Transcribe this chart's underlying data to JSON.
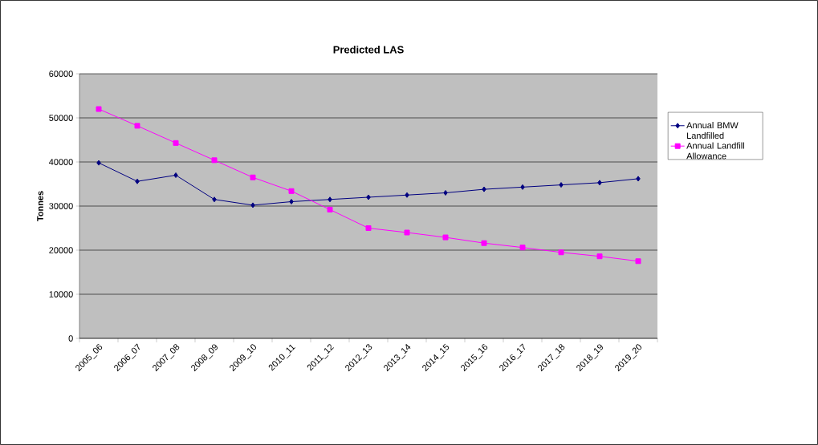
{
  "chart_data": {
    "type": "line",
    "title": "Predicted LAS",
    "ylabel": "Tonnes",
    "categories": [
      "2005_06",
      "2006_07",
      "2007_08",
      "2008_09",
      "2009_10",
      "2010_11",
      "2011_12",
      "2012_13",
      "2013_14",
      "2014_15",
      "2015_16",
      "2016_17",
      "2017_18",
      "2018_19",
      "2019_20"
    ],
    "series": [
      {
        "name": "Annual BMW Landfilled",
        "color": "#000080",
        "marker": "diamond",
        "values": [
          39800,
          35600,
          37000,
          31500,
          30200,
          31000,
          31500,
          32000,
          32500,
          33000,
          33800,
          34300,
          34800,
          35300,
          36200
        ]
      },
      {
        "name": "Annual Landfill Allowance",
        "color": "#ff00ff",
        "marker": "square",
        "values": [
          52000,
          48200,
          44300,
          40400,
          36500,
          33400,
          29200,
          25000,
          24000,
          22900,
          21600,
          20600,
          19500,
          18600,
          17500
        ]
      }
    ],
    "ylim": [
      0,
      60000
    ],
    "yticks": [
      0,
      10000,
      20000,
      30000,
      40000,
      50000,
      60000
    ],
    "grid": "y",
    "legend": "right"
  }
}
